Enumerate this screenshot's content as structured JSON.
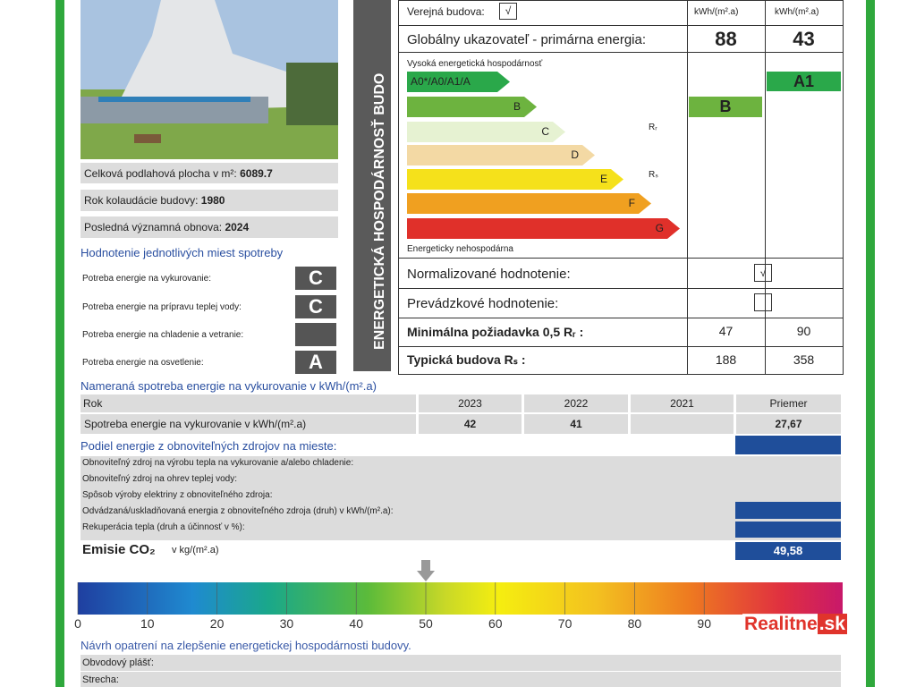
{
  "photo_info": {
    "floor_area_label": "Celková podlahová plocha v m²:",
    "floor_area": 6089.7,
    "year_label": "Rok kolaudácie budovy:",
    "year": 1980,
    "renovation_label": "Posledná významná obnova:",
    "renovation": 2024
  },
  "consumption_title": "Hodnotenie jednotlivých miest spotreby",
  "consumption": [
    {
      "label": "Potreba energie na vykurovanie:",
      "class": "C"
    },
    {
      "label": "Potreba energie na prípravu teplej vody:",
      "class": "C"
    },
    {
      "label": "Potreba energie na chladenie a vetranie:"
    },
    {
      "label": "Potreba energie na osvetlenie:",
      "class": "A"
    }
  ],
  "band_title": "ENERGETICKÁ HOSPODÁRNOSŤ BUDO",
  "rating": {
    "units": [
      "kWh/(m².a)",
      "kWh/(m².a)"
    ],
    "public_label": "Verejná budova:",
    "public_check": "√",
    "global_label": "Globálny ukazovateľ - primárna energia:",
    "global_values": [
      88,
      43
    ],
    "high_label": "Vysoká energetická hospodárnosť",
    "classes": [
      "A0*/A0/A1/A",
      "B",
      "C",
      "D",
      "E",
      "F",
      "G"
    ],
    "rr": "Rᵣ",
    "rs": "Rₛ",
    "low_label": "Energeticky nehospodárna",
    "result_classes": [
      "B",
      "A1"
    ],
    "normalized_label": "Normalizované hodnotenie:",
    "normalized_check": "√",
    "operational_label": "Prevádzkové hodnotenie:",
    "min_label": "Minimálna požiadavka 0,5 Rᵣ :",
    "min_values": [
      47,
      90
    ],
    "typical_label": "Typická budova Rₛ :",
    "typical_values": [
      188,
      358
    ]
  },
  "measured": {
    "title": "Nameraná spotreba energie na vykurovanie v kWh/(m².a)",
    "header": [
      "Rok",
      "2023",
      "2022",
      "2021",
      "Priemer"
    ],
    "row": [
      "Spotreba energie na vykurovanie v kWh/(m².a)",
      42,
      41,
      null,
      "27,67"
    ]
  },
  "renewables": {
    "title": "Podiel energie z obnoviteľných zdrojov na mieste:",
    "rows": [
      "Obnoviteľný zdroj na výrobu tepla na vykurovanie a/alebo chladenie:",
      "Obnoviteľný zdroj na ohrev teplej vody:",
      "Spôsob výroby elektriny z obnoviteľného zdroja:",
      "Odvádzaná/uskladňovaná energia z obnoviteľného zdroja (druh) v kWh/(m².a):",
      "Rekuperácia tepla (druh a účinnosť v %):"
    ]
  },
  "emissions": {
    "label": "Emisie CO₂",
    "unit": "v kg/(m².a)",
    "value": "49,58"
  },
  "scale": {
    "ticks": [
      0,
      10,
      20,
      30,
      40,
      50,
      60,
      70,
      80,
      90
    ],
    "marker": 50
  },
  "measures": {
    "title": "Návrh opatrení na zlepšenie energetickej hospodárnosti budovy.",
    "rows": [
      "Obvodový plášť:",
      "Strecha:"
    ]
  },
  "watermark": {
    "brand": "Realitne",
    "domain": ".sk"
  }
}
